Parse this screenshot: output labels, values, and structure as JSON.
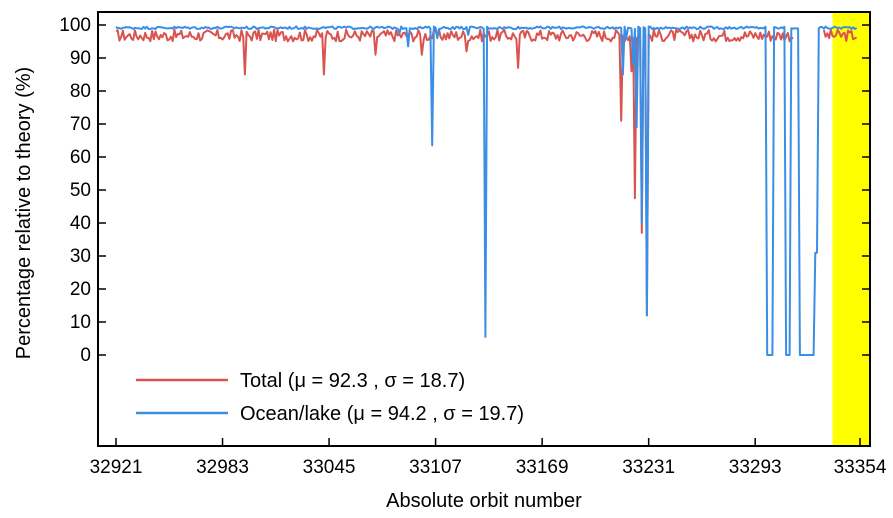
{
  "chart_data": {
    "type": "line",
    "title": "",
    "xlabel": "Absolute orbit number",
    "ylabel": "Percentage relative to theory (%)",
    "xlim": [
      32921,
      33354
    ],
    "ylim": [
      0,
      100
    ],
    "x_ticks": [
      "32921",
      "32983",
      "33045",
      "33107",
      "33169",
      "33231",
      "33293",
      "33354"
    ],
    "y_ticks": [
      "0",
      "10",
      "20",
      "30",
      "40",
      "50",
      "60",
      "70",
      "80",
      "90",
      "100"
    ],
    "highlight_region": {
      "x_start": 33338,
      "x_end": 33354,
      "color": "#ffff00"
    },
    "legend_position": "bottom-left",
    "series": [
      {
        "name": "Total (μ = 92.3 , σ = 18.7)",
        "color": "#d9534f",
        "baseline": 97,
        "noise": 1.8,
        "x_start": 32921,
        "x_end": 33352,
        "gaps": [
          [
            33316,
            33332
          ]
        ],
        "dips": [
          {
            "x": 32996,
            "y": 85
          },
          {
            "x": 33042,
            "y": 85
          },
          {
            "x": 33072,
            "y": 91
          },
          {
            "x": 33099,
            "y": 91
          },
          {
            "x": 33125,
            "y": 92
          },
          {
            "x": 33155,
            "y": 87
          },
          {
            "x": 33215,
            "y": 71
          },
          {
            "x": 33221,
            "y": 86
          },
          {
            "x": 33223,
            "y": 47.5
          },
          {
            "x": 33227,
            "y": 37
          },
          {
            "x": 33230,
            "y": 12
          }
        ]
      },
      {
        "name": "Ocean/lake (μ = 94.2 , σ = 19.7)",
        "color": "#3a8ee6",
        "baseline": 99.2,
        "noise": 0.4,
        "x_start": 32921,
        "x_end": 33352,
        "gaps": [],
        "dips": [
          {
            "x": 33086,
            "y": 97.5
          },
          {
            "x": 33091,
            "y": 93.5
          },
          {
            "x": 33105,
            "y": 63.5
          },
          {
            "x": 33108,
            "y": 96
          },
          {
            "x": 33126,
            "y": 97
          },
          {
            "x": 33136,
            "y": 5.5
          },
          {
            "x": 33216,
            "y": 85
          },
          {
            "x": 33218,
            "y": 96
          },
          {
            "x": 33222,
            "y": 88
          },
          {
            "x": 33224,
            "y": 69
          },
          {
            "x": 33227,
            "y": 40
          },
          {
            "x": 33230,
            "y": 12
          }
        ],
        "plateaus": [
          {
            "x_from": 33300,
            "x_to": 33303,
            "y": 0
          },
          {
            "x_from": 33311,
            "x_to": 33313,
            "y": 0
          },
          {
            "x_from": 33319,
            "x_to": 33327,
            "y": 0
          },
          {
            "x_from": 33328,
            "x_to": 33329,
            "y": 31
          }
        ],
        "spikes": [
          {
            "x": 33306,
            "y": 99
          },
          {
            "x": 33316,
            "y": 99
          }
        ]
      }
    ]
  }
}
